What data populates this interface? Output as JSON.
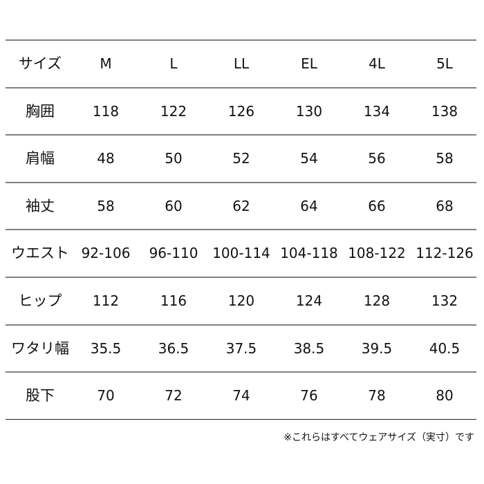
{
  "table": {
    "header": {
      "label": "サイズ",
      "values": [
        "M",
        "L",
        "LL",
        "EL",
        "4L",
        "5L"
      ]
    },
    "rows": [
      {
        "label": "胸囲",
        "values": [
          "118",
          "122",
          "126",
          "130",
          "134",
          "138"
        ]
      },
      {
        "label": "肩幅",
        "values": [
          "48",
          "50",
          "52",
          "54",
          "56",
          "58"
        ]
      },
      {
        "label": "袖丈",
        "values": [
          "58",
          "60",
          "62",
          "64",
          "66",
          "68"
        ]
      },
      {
        "label": "ウエスト",
        "values": [
          "92-106",
          "96-110",
          "100-114",
          "104-118",
          "108-122",
          "112-126"
        ]
      },
      {
        "label": "ヒップ",
        "values": [
          "112",
          "116",
          "120",
          "124",
          "128",
          "132"
        ]
      },
      {
        "label": "ワタリ幅",
        "values": [
          "35.5",
          "36.5",
          "37.5",
          "38.5",
          "39.5",
          "40.5"
        ]
      },
      {
        "label": "股下",
        "values": [
          "70",
          "72",
          "74",
          "76",
          "78",
          "80"
        ]
      }
    ]
  },
  "note": "※これらはすべてウェアサイズ（実寸）です"
}
